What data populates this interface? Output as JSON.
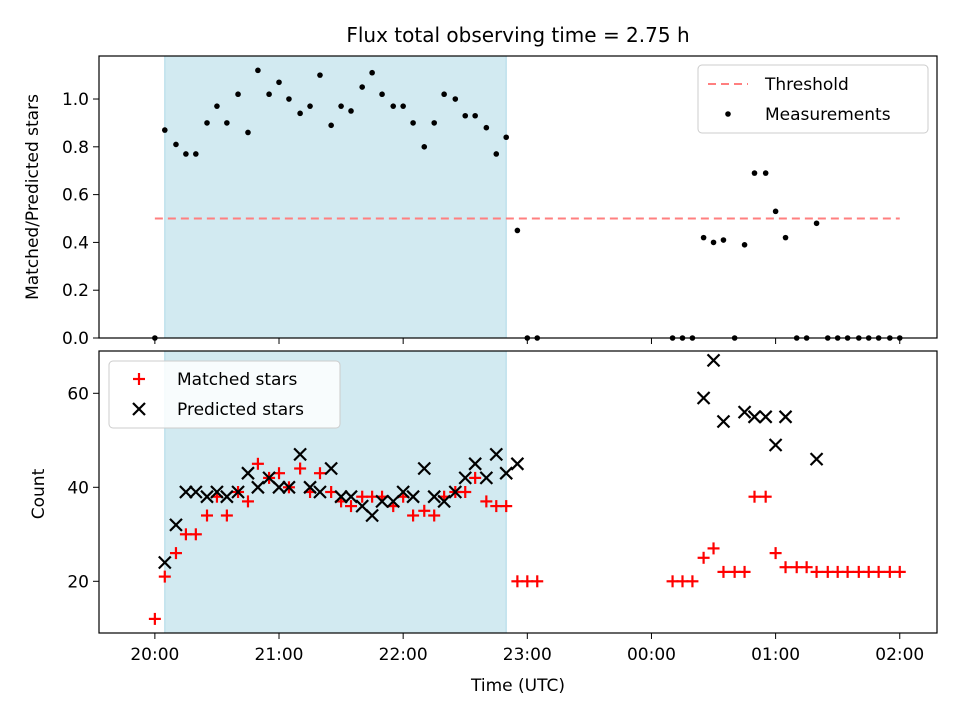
{
  "title": "Flux total observing time = 2.75 h",
  "colors": {
    "shade": "#add8e6",
    "threshold": "#ff7f7f",
    "measurement": "#000000",
    "matched": "#ff0000",
    "predicted": "#000000"
  },
  "chart_data": [
    {
      "type": "scatter",
      "ylabel": "Matched/Predicted stars",
      "ylim": [
        0,
        1.18
      ],
      "xlim_hours": [
        19.55,
        26.3
      ],
      "yticks": [
        0.0,
        0.2,
        0.4,
        0.6,
        0.8,
        1.0
      ],
      "ytick_labels": [
        "0.0",
        "0.2",
        "0.4",
        "0.6",
        "0.8",
        "1.0"
      ],
      "shaded_span_hours": [
        20.08,
        22.83
      ],
      "threshold": {
        "label": "Threshold",
        "value": 0.5,
        "x_range_hours": [
          20.0,
          26.0
        ]
      },
      "legend": {
        "position": "top-right",
        "entries": [
          "Threshold",
          "Measurements"
        ]
      },
      "series": [
        {
          "name": "Measurements",
          "x_hours": [
            20.0,
            20.08,
            20.17,
            20.25,
            20.33,
            20.42,
            20.5,
            20.58,
            20.67,
            20.75,
            20.83,
            20.92,
            21.0,
            21.08,
            21.17,
            21.25,
            21.33,
            21.42,
            21.5,
            21.58,
            21.67,
            21.75,
            21.83,
            21.92,
            22.0,
            22.08,
            22.17,
            22.25,
            22.33,
            22.42,
            22.5,
            22.58,
            22.67,
            22.75,
            22.83,
            22.92,
            23.0,
            23.08,
            24.17,
            24.25,
            24.33,
            24.42,
            24.5,
            24.58,
            24.67,
            24.75,
            24.83,
            24.92,
            25.0,
            25.08,
            25.17,
            25.25,
            25.33,
            25.42,
            25.5,
            25.58,
            25.67,
            25.75,
            25.83,
            25.92,
            26.0
          ],
          "y": [
            0.0,
            0.87,
            0.81,
            0.77,
            0.77,
            0.9,
            0.97,
            0.9,
            1.02,
            0.86,
            1.12,
            1.02,
            1.07,
            1.0,
            0.94,
            0.97,
            1.1,
            0.89,
            0.97,
            0.95,
            1.05,
            1.11,
            1.02,
            0.97,
            0.97,
            0.9,
            0.8,
            0.9,
            1.02,
            1.0,
            0.93,
            0.93,
            0.88,
            0.77,
            0.84,
            0.45,
            0.0,
            0.0,
            0.0,
            0.0,
            0.0,
            0.42,
            0.4,
            0.41,
            0.0,
            0.39,
            0.69,
            0.69,
            0.53,
            0.42,
            0.0,
            0.0,
            0.48,
            0.0,
            0.0,
            0.0,
            0.0,
            0.0,
            0.0,
            0.0,
            0.0
          ]
        }
      ]
    },
    {
      "type": "scatter",
      "ylabel": "Count",
      "xlabel": "Time (UTC)",
      "ylim": [
        9.0,
        69.0
      ],
      "xlim_hours": [
        19.55,
        26.3
      ],
      "yticks": [
        20,
        40,
        60
      ],
      "ytick_labels": [
        "20",
        "40",
        "60"
      ],
      "xticks_hours": [
        20,
        21,
        22,
        23,
        24,
        25,
        26
      ],
      "xtick_labels": [
        "20:00",
        "21:00",
        "22:00",
        "23:00",
        "00:00",
        "01:00",
        "02:00"
      ],
      "shaded_span_hours": [
        20.08,
        22.83
      ],
      "legend": {
        "position": "top-left",
        "entries": [
          "Matched stars",
          "Predicted stars"
        ]
      },
      "series": [
        {
          "name": "Matched stars",
          "marker": "plus",
          "x_hours": [
            20.0,
            20.08,
            20.17,
            20.25,
            20.33,
            20.42,
            20.5,
            20.58,
            20.67,
            20.75,
            20.83,
            20.92,
            21.0,
            21.08,
            21.17,
            21.25,
            21.33,
            21.42,
            21.5,
            21.58,
            21.67,
            21.75,
            21.83,
            21.92,
            22.0,
            22.08,
            22.17,
            22.25,
            22.33,
            22.42,
            22.5,
            22.58,
            22.67,
            22.75,
            22.83,
            22.92,
            23.0,
            23.08,
            24.17,
            24.25,
            24.33,
            24.42,
            24.5,
            24.58,
            24.67,
            24.75,
            24.83,
            24.92,
            25.0,
            25.08,
            25.17,
            25.25,
            25.33,
            25.42,
            25.5,
            25.58,
            25.67,
            25.75,
            25.83,
            25.92,
            26.0
          ],
          "y": [
            12,
            21,
            26,
            30,
            30,
            34,
            38,
            34,
            39,
            37,
            45,
            42,
            43,
            40,
            44,
            39,
            43,
            39,
            37,
            36,
            38,
            38,
            38,
            36,
            38,
            34,
            35,
            34,
            38,
            39,
            39,
            42,
            37,
            36,
            36,
            20,
            20,
            20,
            20,
            20,
            20,
            25,
            27,
            22,
            22,
            22,
            38,
            38,
            26,
            23,
            23,
            23,
            22,
            22,
            22,
            22,
            22,
            22,
            22,
            22,
            22
          ]
        },
        {
          "name": "Predicted stars",
          "marker": "x",
          "x_hours": [
            20.08,
            20.17,
            20.25,
            20.33,
            20.42,
            20.5,
            20.58,
            20.67,
            20.75,
            20.83,
            20.92,
            21.0,
            21.08,
            21.17,
            21.25,
            21.33,
            21.42,
            21.5,
            21.58,
            21.67,
            21.75,
            21.83,
            21.92,
            22.0,
            22.08,
            22.17,
            22.25,
            22.33,
            22.42,
            22.5,
            22.58,
            22.67,
            22.75,
            22.83,
            22.92,
            24.42,
            24.5,
            24.58,
            24.75,
            24.83,
            24.92,
            25.0,
            25.08,
            25.33
          ],
          "y": [
            24,
            32,
            39,
            39,
            38,
            39,
            38,
            39,
            43,
            40,
            42,
            40,
            40,
            47,
            40,
            39,
            44,
            38,
            38,
            36,
            34,
            37,
            37,
            39,
            38,
            44,
            38,
            37,
            39,
            42,
            45,
            42,
            47,
            43,
            45,
            59,
            67,
            54,
            56,
            55,
            55,
            49,
            55,
            46
          ]
        }
      ]
    }
  ]
}
